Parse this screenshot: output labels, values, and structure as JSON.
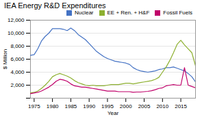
{
  "chart_data": {
    "type": "line",
    "title": "IEA Energy R&D Expenditures",
    "xlabel": "Year",
    "ylabel": "$ Million",
    "x": [
      1974,
      1975,
      1976,
      1977,
      1978,
      1979,
      1980,
      1981,
      1982,
      1983,
      1984,
      1985,
      1986,
      1987,
      1988,
      1989,
      1990,
      1991,
      1992,
      1993,
      1994,
      1995,
      1996,
      1997,
      1998,
      1999,
      2000,
      2001,
      2002,
      2003,
      2004,
      2005,
      2006,
      2007,
      2008,
      2009,
      2010,
      2011,
      2012,
      2013,
      2014,
      2015,
      2016,
      2017,
      2018,
      2019
    ],
    "series": [
      {
        "name": "Nuclear",
        "color": "#4472c4",
        "values": [
          6600,
          6700,
          7600,
          8800,
          9500,
          10000,
          10700,
          10700,
          10700,
          10600,
          10400,
          10800,
          10400,
          9800,
          9400,
          9000,
          8400,
          7800,
          7200,
          6800,
          6400,
          6100,
          5900,
          5700,
          5600,
          5500,
          5400,
          5200,
          4700,
          4400,
          4200,
          4100,
          4000,
          4100,
          4200,
          4400,
          4500,
          4700,
          4700,
          4800,
          4600,
          4400,
          4200,
          3800,
          3300,
          2500
        ]
      },
      {
        "name": "EE + Ren. + H&F",
        "color": "#8db030",
        "values": [
          800,
          900,
          1100,
          1500,
          2000,
          2600,
          3300,
          3600,
          3800,
          3600,
          3400,
          3100,
          2700,
          2400,
          2200,
          2000,
          1900,
          2000,
          1900,
          1900,
          1900,
          2000,
          2100,
          2100,
          2100,
          2200,
          2300,
          2300,
          2200,
          2300,
          2400,
          2500,
          2600,
          2700,
          2900,
          3200,
          4000,
          4800,
          5800,
          7000,
          8300,
          8900,
          8200,
          7600,
          7000,
          5000
        ]
      },
      {
        "name": "Fossil Fuels",
        "color": "#c0006a",
        "values": [
          700,
          800,
          900,
          1100,
          1400,
          1700,
          2100,
          2600,
          2900,
          2800,
          2600,
          2200,
          1900,
          1800,
          1700,
          1700,
          1600,
          1500,
          1400,
          1300,
          1200,
          1100,
          1100,
          1100,
          1000,
          1000,
          1000,
          1000,
          900,
          950,
          950,
          1000,
          1050,
          1150,
          1300,
          1500,
          1600,
          1900,
          2000,
          2100,
          2000,
          2000,
          4700,
          2000,
          1800,
          1600
        ]
      }
    ],
    "xlim": [
      1974,
      2019
    ],
    "xticks": [
      1975,
      1980,
      1985,
      1990,
      1995,
      2000,
      2005,
      2010,
      2015
    ],
    "ylim": [
      0,
      12000
    ],
    "yticks": [
      {
        "value": 0,
        "label": null
      },
      {
        "value": 2000,
        "label": "2,000"
      },
      {
        "value": 4000,
        "label": "4,000"
      },
      {
        "value": 6000,
        "label": "6,000"
      },
      {
        "value": 8000,
        "label": "8,000"
      },
      {
        "value": 10000,
        "label": "10,000"
      },
      {
        "value": 12000,
        "label": "12,000"
      }
    ],
    "grid": true,
    "legend": "upper right"
  }
}
